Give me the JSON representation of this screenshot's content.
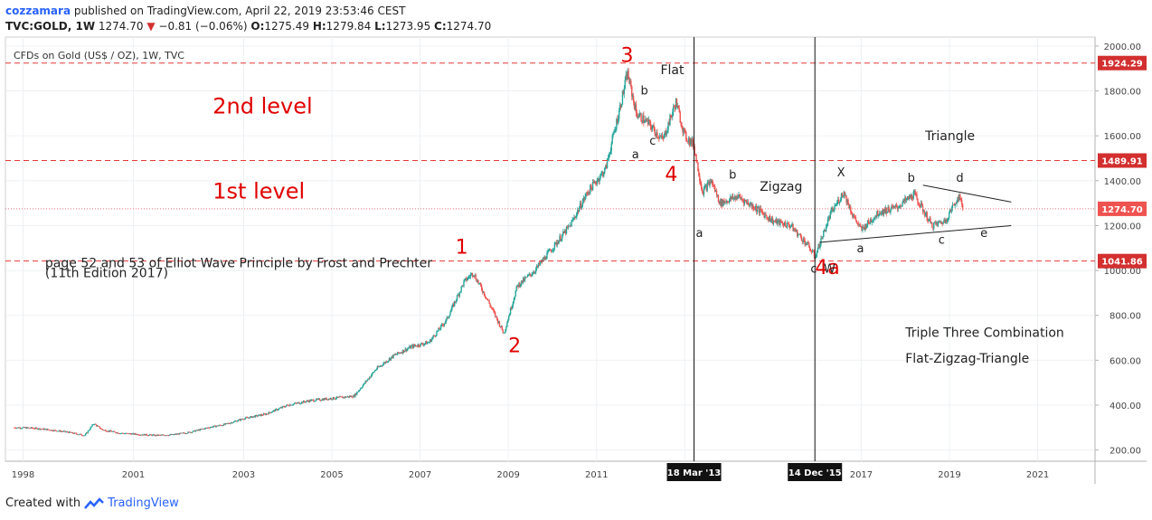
{
  "header": {
    "publisher": "cozzamara",
    "published_text": "published on TradingView.com, April 22, 2019 23:53:46 CEST",
    "symbol": "TVC:GOLD, 1W",
    "last": "1274.70",
    "change": "−0.81 (−0.06%)",
    "open_label": "O:",
    "open": "1275.49",
    "high_label": "H:",
    "high": "1279.84",
    "low_label": "L:",
    "low": "1273.95",
    "close_label": "C:",
    "close": "1274.70"
  },
  "instrument_title": "CFDs on Gold (US$ / OZ), 1W, TVC",
  "footer": {
    "created_with": "Created with",
    "brand": "TradingView"
  },
  "colors": {
    "candle_up": "#26a69a",
    "candle_down": "#ef5350",
    "wave": "#e00000",
    "accent": "#2962ff"
  },
  "chart_data": {
    "type": "line",
    "title": "CFDs on Gold (US$ / OZ), 1W, TVC",
    "xlabel": "",
    "ylabel": "",
    "xlim": [
      1997.6,
      2022.3
    ],
    "ylim": [
      150,
      2040
    ],
    "x_ticks": [
      "1998",
      "2001",
      "2003",
      "2005",
      "2007",
      "2009",
      "2011",
      "2013",
      "2017",
      "2019",
      "2021"
    ],
    "x_tick_values": [
      1998,
      2000.5,
      2003,
      2005,
      2007,
      2009,
      2011,
      2013,
      2017,
      2019,
      2021
    ],
    "y_ticks": [
      "200.00",
      "400.00",
      "600.00",
      "800.00",
      "1000.00",
      "1200.00",
      "1400.00",
      "1600.00",
      "1800.00",
      "2000.00"
    ],
    "y_tick_values": [
      200,
      400,
      600,
      800,
      1000,
      1200,
      1400,
      1600,
      1800,
      2000
    ],
    "grid": true,
    "series": [
      {
        "x": [
          1997.8,
          1998.2,
          1998.6,
          1999.0,
          1999.4,
          1999.6,
          1999.8,
          2000.2,
          2000.6,
          2001.0,
          2001.4,
          2001.8,
          2002.2,
          2002.6,
          2003.0,
          2003.5,
          2004.0,
          2004.5,
          2005.0,
          2005.5,
          2006.0,
          2006.4,
          2006.8,
          2007.2,
          2007.6,
          2008.0,
          2008.2,
          2008.5,
          2008.9,
          2009.2,
          2009.6,
          2010.0,
          2010.4,
          2010.8,
          2011.2,
          2011.5,
          2011.7,
          2011.9,
          2012.2,
          2012.5,
          2012.8,
          2013.0,
          2013.2,
          2013.4,
          2013.6,
          2013.8,
          2014.2,
          2014.6,
          2015.0,
          2015.4,
          2015.8,
          2015.95,
          2016.3,
          2016.6,
          2016.8,
          2017.0,
          2017.4,
          2017.8,
          2018.2,
          2018.6,
          2018.9,
          2019.2,
          2019.3
        ],
        "y": [
          300,
          298,
          290,
          280,
          265,
          318,
          290,
          275,
          270,
          265,
          268,
          280,
          300,
          315,
          340,
          360,
          400,
          420,
          430,
          440,
          560,
          620,
          660,
          680,
          780,
          950,
          990,
          880,
          720,
          930,
          1000,
          1100,
          1200,
          1350,
          1450,
          1700,
          1880,
          1700,
          1650,
          1580,
          1750,
          1600,
          1560,
          1350,
          1400,
          1300,
          1330,
          1280,
          1220,
          1200,
          1110,
          1060,
          1250,
          1350,
          1250,
          1180,
          1260,
          1280,
          1340,
          1200,
          1220,
          1330,
          1290
        ]
      }
    ],
    "price_lines": [
      {
        "label": "1924.29",
        "value": 1924.29
      },
      {
        "label": "1489.91",
        "value": 1489.91
      },
      {
        "label": "1041.86",
        "value": 1041.86
      }
    ],
    "last_price": {
      "label": "1274.70",
      "value": 1274.7
    },
    "vertical_markers": [
      {
        "label": "18 Mar '13",
        "x": 2013.21
      },
      {
        "label": "14 Dec '15",
        "x": 2015.95
      }
    ],
    "triangle_lines": [
      {
        "x": [
          2018.4,
          2020.4
        ],
        "y": [
          1380,
          1305
        ]
      },
      {
        "x": [
          2016.05,
          2020.4
        ],
        "y": [
          1125,
          1200
        ]
      }
    ],
    "annotations": [
      {
        "text": "2nd level",
        "x": 2002.3,
        "y": 1700,
        "color": "red",
        "size": 24
      },
      {
        "text": "1st level",
        "x": 2002.3,
        "y": 1320,
        "color": "red",
        "size": 24
      },
      {
        "text": "page 52 and 53 of Elliot Wave Principle by Frost and Prechter",
        "x": 1998.5,
        "y": 1015,
        "color": "dark",
        "size": 14
      },
      {
        "text": "(11th Edition 2017)",
        "x": 1998.5,
        "y": 970,
        "color": "dark",
        "size": 14
      },
      {
        "text": "1",
        "x": 2007.8,
        "y": 1075,
        "color": "red",
        "size": 22
      },
      {
        "text": "2",
        "x": 2009.0,
        "y": 635,
        "color": "red",
        "size": 22
      },
      {
        "text": "3",
        "x": 2011.55,
        "y": 1930,
        "color": "red",
        "size": 22
      },
      {
        "text": "4",
        "x": 2012.55,
        "y": 1400,
        "color": "red",
        "size": 22
      },
      {
        "text": "4a",
        "x": 2015.95,
        "y": 985,
        "color": "red",
        "size": 22
      },
      {
        "text": "Flat",
        "x": 2012.45,
        "y": 1875,
        "color": "dark",
        "size": 14
      },
      {
        "text": "Zigzag",
        "x": 2014.7,
        "y": 1355,
        "color": "dark",
        "size": 14
      },
      {
        "text": "Triangle",
        "x": 2018.45,
        "y": 1580,
        "color": "dark",
        "size": 14
      },
      {
        "text": "Triple Three Combination",
        "x": 2018.0,
        "y": 705,
        "color": "dark",
        "size": 14
      },
      {
        "text": "Flat-Zigzag-Triangle",
        "x": 2018.0,
        "y": 590,
        "color": "dark",
        "size": 14
      },
      {
        "text": "a",
        "x": 2011.8,
        "y": 1500,
        "color": "dark",
        "size": 13
      },
      {
        "text": "b",
        "x": 2012.0,
        "y": 1785,
        "color": "dark",
        "size": 13
      },
      {
        "text": "c",
        "x": 2012.2,
        "y": 1560,
        "color": "dark",
        "size": 13
      },
      {
        "text": "a",
        "x": 2013.25,
        "y": 1150,
        "color": "dark",
        "size": 13
      },
      {
        "text": "b",
        "x": 2014.0,
        "y": 1410,
        "color": "dark",
        "size": 13
      },
      {
        "text": "c",
        "x": 2015.85,
        "y": 990,
        "color": "dark",
        "size": 13
      },
      {
        "text": "W",
        "x": 2016.15,
        "y": 990,
        "color": "dark",
        "size": 13
      },
      {
        "text": "X",
        "x": 2016.45,
        "y": 1420,
        "color": "dark",
        "size": 13
      },
      {
        "text": "a",
        "x": 2016.9,
        "y": 1080,
        "color": "dark",
        "size": 13
      },
      {
        "text": "b",
        "x": 2018.05,
        "y": 1395,
        "color": "dark",
        "size": 13
      },
      {
        "text": "c",
        "x": 2018.75,
        "y": 1120,
        "color": "dark",
        "size": 13
      },
      {
        "text": "d",
        "x": 2019.15,
        "y": 1395,
        "color": "dark",
        "size": 13
      },
      {
        "text": "e",
        "x": 2019.7,
        "y": 1150,
        "color": "dark",
        "size": 13
      }
    ]
  }
}
